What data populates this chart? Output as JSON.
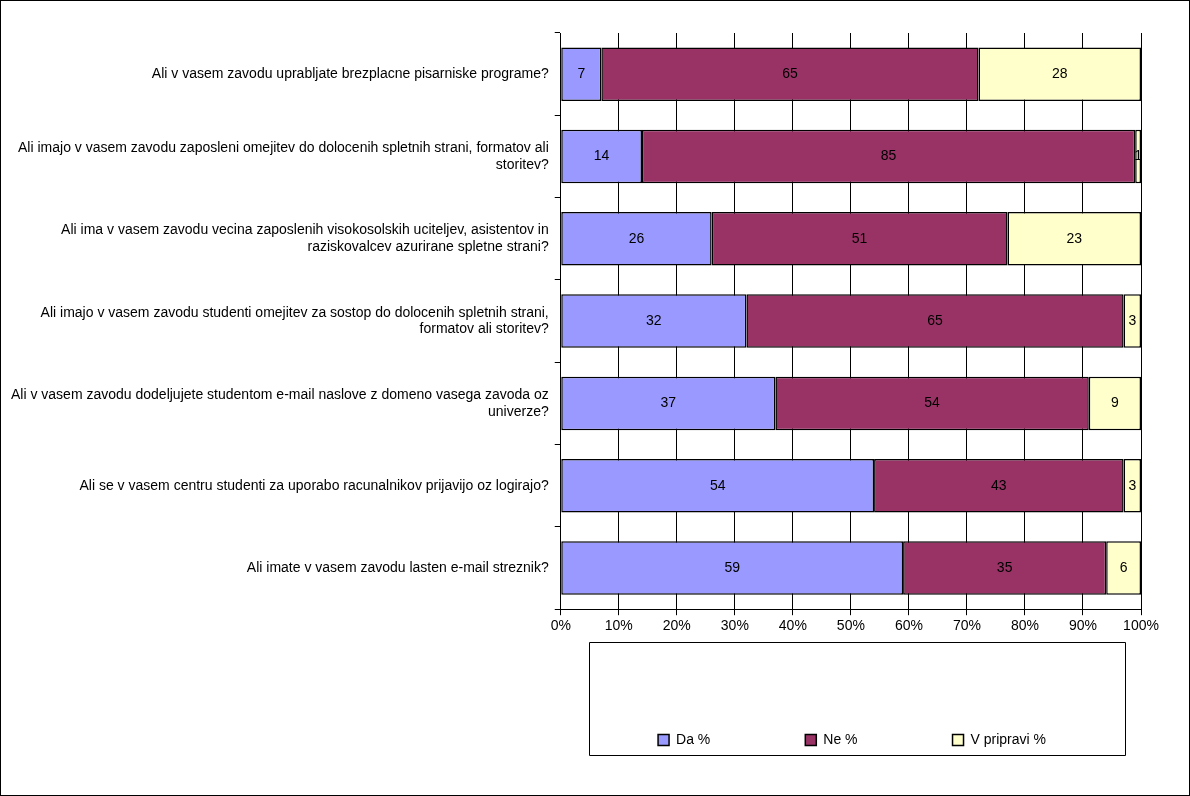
{
  "chart_data": {
    "type": "bar",
    "orientation": "horizontal",
    "stacked": true,
    "data_labels": true,
    "grid": "x",
    "legend": "bottom",
    "categories": [
      "Ali v vasem zavodu uprabljate brezplacne pisarniske programe?",
      "Ali imajo v vasem zavodu zaposleni omejitev do dolocenih spletnih strani, formatov ali storitev?",
      "Ali ima v vasem zavodu vecina zaposlenih visokosolskih uciteljev, asistentov in raziskovalcev azurirane spletne strani?",
      "Ali imajo v vasem zavodu studenti omejitev za sostop do dolocenih spletnih strani, formatov ali storitev?",
      "Ali v vasem zavodu dodeljujete studentom e-mail naslove z domeno vasega zavoda oz univerze?",
      "Ali se v vasem centru studenti za uporabo racunalnikov prijavijo oz logirajo?",
      "Ali imate v vasem zavodu lasten e-mail streznik?"
    ],
    "series": [
      {
        "name": "Da %",
        "color": "#9999ff",
        "values": [
          7,
          14,
          26,
          32,
          37,
          54,
          59
        ]
      },
      {
        "name": "Ne %",
        "color": "#993366",
        "values": [
          65,
          85,
          51,
          65,
          54,
          43,
          35
        ]
      },
      {
        "name": "V pripravi %",
        "color": "#ffffcc",
        "values": [
          28,
          1,
          23,
          3,
          9,
          3,
          6
        ]
      }
    ],
    "xlim": [
      0,
      100
    ],
    "xticks": [
      {
        "value": 0,
        "label": "0%"
      },
      {
        "value": 10,
        "label": "10%"
      },
      {
        "value": 20,
        "label": "20%"
      },
      {
        "value": 30,
        "label": "30%"
      },
      {
        "value": 40,
        "label": "40%"
      },
      {
        "value": 50,
        "label": "50%"
      },
      {
        "value": 60,
        "label": "60%"
      },
      {
        "value": 70,
        "label": "70%"
      },
      {
        "value": 80,
        "label": "80%"
      },
      {
        "value": 90,
        "label": "90%"
      },
      {
        "value": 100,
        "label": "100%"
      }
    ]
  }
}
